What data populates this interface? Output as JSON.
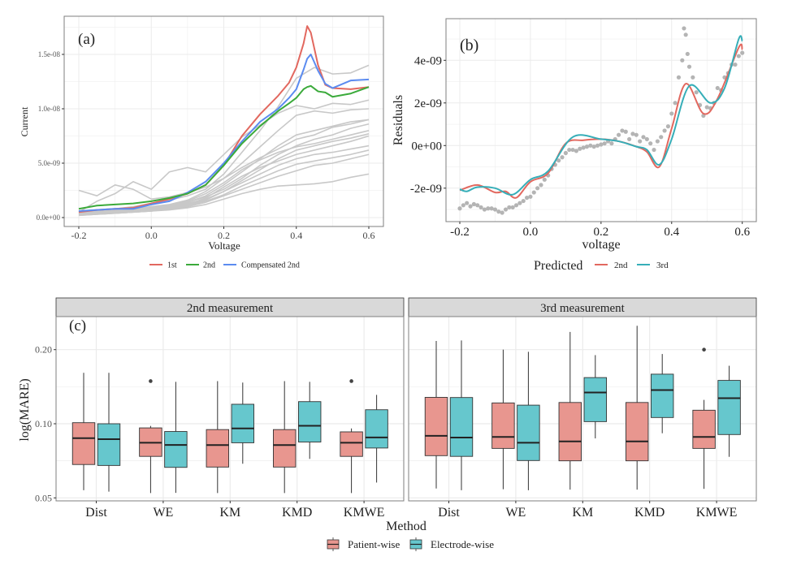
{
  "colors": {
    "first": "#E2685F",
    "second": "#3BAA3B",
    "compensated": "#5B8BF0",
    "gray_curves": "#C8C8C8",
    "pred_2nd": "#E2685F",
    "pred_3rd": "#36AEB8",
    "residual_points": "#B4B4B4",
    "patient_fill": "#E8968F",
    "electrode_fill": "#66C7CD",
    "strip_bg": "#D9D9D9",
    "grid": "#EBEBEB"
  },
  "chart_data": [
    {
      "type": "line",
      "panel_label": "(a)",
      "xlabel": "Voltage",
      "ylabel": "Current",
      "xlim": [
        -0.24,
        0.64
      ],
      "ylim": [
        -8.2e-10,
        1.85e-08
      ],
      "xticks": [
        -0.2,
        0.0,
        0.2,
        0.4,
        0.6
      ],
      "xtick_labels": [
        "-0.2",
        "0.0",
        "0.2",
        "0.4",
        "0.6"
      ],
      "yticks": [
        0,
        5e-09,
        1e-08,
        1.5e-08
      ],
      "ytick_labels": [
        "0.0e+00",
        "5.0e-09",
        "1.0e-08",
        "1.5e-08"
      ],
      "grid": true,
      "legend_position": "bottom",
      "legend": [
        "1st",
        "2nd",
        "Compensated 2nd"
      ],
      "gray_x": [
        -0.2,
        -0.15,
        -0.1,
        -0.05,
        0,
        0.05,
        0.1,
        0.15,
        0.2,
        0.25,
        0.3,
        0.35,
        0.4,
        0.45,
        0.5,
        0.55,
        0.6
      ],
      "gray_series": [
        [
          3e-10,
          4e-10,
          5e-10,
          6e-10,
          7e-10,
          9e-10,
          1.2e-09,
          1.8e-09,
          2.8e-09,
          3.8e-09,
          4.6e-09,
          5.2e-09,
          5.8e-09,
          6.2e-09,
          6.6e-09,
          7e-09,
          7.5e-09
        ],
        [
          4e-10,
          5e-10,
          6e-10,
          7e-10,
          9e-10,
          1.1e-09,
          1.5e-09,
          2.2e-09,
          3.2e-09,
          4.4e-09,
          5.3e-09,
          6e-09,
          6.5e-09,
          6.8e-09,
          7.2e-09,
          7.6e-09,
          8e-09
        ],
        [
          3e-10,
          4e-10,
          4e-10,
          5e-10,
          6e-10,
          8e-10,
          1e-09,
          1.4e-09,
          2e-09,
          2.6e-09,
          3.2e-09,
          3.8e-09,
          4.3e-09,
          4.8e-09,
          5e-09,
          5.4e-09,
          5.8e-09
        ],
        [
          2e-10,
          3e-10,
          4e-10,
          5e-10,
          6e-10,
          7e-10,
          9e-10,
          1.2e-09,
          1.7e-09,
          2.2e-09,
          2.6e-09,
          2.9e-09,
          3e-09,
          3.1e-09,
          3.3e-09,
          3.7e-09,
          4e-09
        ],
        [
          2.5e-09,
          2e-09,
          3e-09,
          2.6e-09,
          1.7e-09,
          1.9e-09,
          2.3e-09,
          2.8e-09,
          3.6e-09,
          4.6e-09,
          5.5e-09,
          6.3e-09,
          7.2e-09,
          7.6e-09,
          8.3e-09,
          8.6e-09,
          9e-09
        ],
        [
          5e-10,
          1.5e-09,
          2.2e-09,
          3.3e-09,
          2.6e-09,
          4.2e-09,
          4.6e-09,
          4.2e-09,
          5.8e-09,
          7.4e-09,
          8.5e-09,
          9.6e-09,
          1.03e-08,
          1e-08,
          1.05e-08,
          1.04e-08,
          1.08e-08
        ],
        [
          6e-10,
          7e-10,
          8e-10,
          1e-09,
          1.3e-09,
          1.6e-09,
          2e-09,
          2.6e-09,
          4e-09,
          6e-09,
          8e-09,
          1.02e-08,
          1.28e-08,
          1.38e-08,
          1.32e-08,
          1.33e-08,
          1.4e-08
        ],
        [
          4e-10,
          5e-10,
          6e-10,
          7e-10,
          8e-10,
          1e-09,
          1.3e-09,
          1.7e-09,
          2.4e-09,
          3.2e-09,
          4e-09,
          4.8e-09,
          5.4e-09,
          5.8e-09,
          6e-09,
          6.3e-09,
          6.6e-09
        ],
        [
          3e-10,
          4e-10,
          5e-10,
          6e-10,
          8e-10,
          1e-09,
          1.4e-09,
          2e-09,
          3e-09,
          4.2e-09,
          5.4e-09,
          6.6e-09,
          7.6e-09,
          8e-09,
          8.4e-09,
          8.8e-09,
          9e-09
        ],
        [
          5e-10,
          6e-10,
          7e-10,
          8e-10,
          1e-09,
          1.2e-09,
          1.6e-09,
          2.4e-09,
          3.6e-09,
          5e-09,
          6.5e-09,
          8e-09,
          9.4e-09,
          9.8e-09,
          9.6e-09,
          9.9e-09,
          1e-08
        ],
        [
          2e-10,
          3e-10,
          4e-10,
          5e-10,
          6e-10,
          8e-10,
          1.1e-09,
          1.5e-09,
          2.1e-09,
          2.9e-09,
          3.6e-09,
          4.3e-09,
          4.9e-09,
          5.2e-09,
          5.5e-09,
          5.8e-09,
          6.2e-09
        ],
        [
          4e-10,
          5e-10,
          5e-10,
          6e-10,
          7e-10,
          9e-10,
          1.2e-09,
          1.6e-09,
          2.4e-09,
          3.4e-09,
          4.4e-09,
          5.4e-09,
          6.2e-09,
          6.6e-09,
          7e-09,
          7.3e-09,
          7.7e-09
        ],
        [
          3e-10,
          4e-10,
          6e-10,
          7e-10,
          9e-10,
          1.1e-09,
          1.4e-09,
          1.9e-09,
          2.6e-09,
          3.6e-09,
          4.8e-09,
          5.8e-09,
          6.6e-09,
          7.2e-09,
          7.6e-09,
          8.2e-09,
          8.6e-09
        ]
      ],
      "series_x": [
        -0.2,
        -0.15,
        -0.1,
        -0.05,
        0,
        0.05,
        0.1,
        0.15,
        0.2,
        0.25,
        0.3,
        0.35,
        0.38,
        0.4,
        0.42,
        0.43,
        0.44,
        0.46,
        0.48,
        0.5,
        0.55,
        0.6
      ],
      "series": [
        {
          "name": "1st",
          "values": [
            5e-10,
            7e-10,
            8e-10,
            9e-10,
            1.3e-09,
            1.7e-09,
            2.2e-09,
            3e-09,
            4.8e-09,
            7.5e-09,
            9.5e-09,
            1.12e-08,
            1.24e-08,
            1.38e-08,
            1.6e-08,
            1.76e-08,
            1.7e-08,
            1.4e-08,
            1.22e-08,
            1.19e-08,
            1.18e-08,
            1.2e-08
          ]
        },
        {
          "name": "2nd",
          "values": [
            8e-10,
            1.1e-09,
            1.2e-09,
            1.3e-09,
            1.5e-09,
            1.8e-09,
            2.2e-09,
            3e-09,
            4.8e-09,
            6.8e-09,
            8.4e-09,
            9.8e-09,
            1.05e-08,
            1.1e-08,
            1.18e-08,
            1.2e-08,
            1.21e-08,
            1.16e-08,
            1.15e-08,
            1.11e-08,
            1.14e-08,
            1.2e-08
          ]
        },
        {
          "name": "Compensated 2nd",
          "values": [
            6e-10,
            7e-10,
            8e-10,
            8e-10,
            1.2e-09,
            1.5e-09,
            2.3e-09,
            3.3e-09,
            5e-09,
            7e-09,
            8.8e-09,
            1e-08,
            1.1e-08,
            1.18e-08,
            1.36e-08,
            1.46e-08,
            1.5e-08,
            1.35e-08,
            1.23e-08,
            1.19e-08,
            1.26e-08,
            1.27e-08
          ]
        }
      ]
    },
    {
      "type": "line",
      "panel_label": "(b)",
      "xlabel": "voltage",
      "ylabel": "Residuals",
      "xlim": [
        -0.239,
        0.64
      ],
      "ylim": [
        -3.57e-09,
        5.95e-09
      ],
      "xticks": [
        -0.2,
        0.0,
        0.2,
        0.4,
        0.6
      ],
      "xtick_labels": [
        "-0.2",
        "0.0",
        "0.2",
        "0.4",
        "0.6"
      ],
      "yticks": [
        -2e-09,
        0,
        2e-09,
        4e-09
      ],
      "ytick_labels": [
        "-2e-09",
        "0e+00",
        "2e-09",
        "4e-09"
      ],
      "grid": true,
      "legend_position": "bottom",
      "legend_title": "Predicted",
      "points": {
        "x": [
          -0.2,
          -0.19,
          -0.18,
          -0.17,
          -0.16,
          -0.15,
          -0.14,
          -0.13,
          -0.12,
          -0.11,
          -0.1,
          -0.09,
          -0.08,
          -0.07,
          -0.06,
          -0.05,
          -0.04,
          -0.03,
          -0.02,
          -0.01,
          0.0,
          0.01,
          0.02,
          0.03,
          0.04,
          0.05,
          0.06,
          0.07,
          0.08,
          0.09,
          0.1,
          0.11,
          0.12,
          0.13,
          0.14,
          0.15,
          0.16,
          0.17,
          0.18,
          0.19,
          0.2,
          0.21,
          0.22,
          0.23,
          0.24,
          0.25,
          0.26,
          0.27,
          0.28,
          0.29,
          0.3,
          0.31,
          0.32,
          0.33,
          0.34,
          0.35,
          0.36,
          0.37,
          0.38,
          0.39,
          0.4,
          0.41,
          0.42,
          0.43,
          0.435,
          0.44,
          0.445,
          0.45,
          0.46,
          0.47,
          0.48,
          0.49,
          0.5,
          0.51,
          0.52,
          0.53,
          0.54,
          0.55,
          0.56,
          0.57,
          0.58,
          0.59,
          0.6
        ],
        "y": [
          -2.95e-09,
          -2.8e-09,
          -2.7e-09,
          -2.85e-09,
          -2.75e-09,
          -2.8e-09,
          -2.9e-09,
          -3e-09,
          -2.95e-09,
          -2.95e-09,
          -3e-09,
          -3.1e-09,
          -3.15e-09,
          -3e-09,
          -2.9e-09,
          -2.9e-09,
          -2.8e-09,
          -2.7e-09,
          -2.6e-09,
          -2.45e-09,
          -2.4e-09,
          -2.2e-09,
          -2e-09,
          -1.85e-09,
          -1.6e-09,
          -1.4e-09,
          -1.1e-09,
          -9e-10,
          -7e-10,
          -5.5e-10,
          -3.5e-10,
          -2e-10,
          -2e-10,
          -2.5e-10,
          -1.5e-10,
          -1e-10,
          -5e-11,
          0,
          -5e-11,
          0,
          5e-11,
          1e-10,
          2e-10,
          1e-10,
          3e-10,
          5e-10,
          7e-10,
          6.5e-10,
          3e-10,
          5.5e-10,
          5e-10,
          2e-10,
          4e-10,
          3e-10,
          1e-10,
          -2e-10,
          2e-10,
          4e-10,
          7e-10,
          9e-10,
          1.5e-09,
          2e-09,
          3.2e-09,
          4e-09,
          5.5e-09,
          5.2e-09,
          4.3e-09,
          3.7e-09,
          3.2e-09,
          2.5e-09,
          1.9e-09,
          1.4e-09,
          1.8e-09,
          1.75e-09,
          2e-09,
          2.7e-09,
          2.6e-09,
          3.2e-09,
          3.4e-09,
          3.8e-09,
          3.8e-09,
          4.2e-09,
          4.35e-09
        ]
      },
      "series": [
        {
          "name": "2nd",
          "x": [
            -0.2,
            -0.15,
            -0.1,
            -0.07,
            -0.04,
            0.0,
            0.05,
            0.1,
            0.15,
            0.2,
            0.25,
            0.3,
            0.33,
            0.365,
            0.4,
            0.44,
            0.49,
            0.53,
            0.59,
            0.6
          ],
          "values": [
            -2.1e-09,
            -1.85e-09,
            -2.2e-09,
            -2.15e-09,
            -2.45e-09,
            -1.7e-09,
            -1.3e-09,
            1e-10,
            2.5e-10,
            3e-10,
            2e-10,
            -5e-11,
            -3e-10,
            -1e-09,
            8e-10,
            2.9e-09,
            1.5e-09,
            2.2e-09,
            4.6e-09,
            4.5e-09
          ]
        },
        {
          "name": "3rd",
          "x": [
            -0.2,
            -0.18,
            -0.15,
            -0.1,
            -0.05,
            0.0,
            0.05,
            0.12,
            0.2,
            0.25,
            0.3,
            0.33,
            0.365,
            0.4,
            0.45,
            0.51,
            0.55,
            0.59,
            0.6
          ],
          "values": [
            -2.05e-09,
            -2.15e-09,
            -1.95e-09,
            -2e-09,
            -2.3e-09,
            -1.6e-09,
            -1.2e-09,
            4e-10,
            3e-10,
            2e-10,
            -5e-11,
            -2e-10,
            -9e-10,
            3e-10,
            2.8e-09,
            2e-09,
            2.7e-09,
            5e-09,
            4.9e-09
          ]
        }
      ]
    },
    {
      "type": "box",
      "panel_label": "(c)",
      "xlabel": "Method",
      "ylabel": "log(MARE)",
      "y_scale": "log",
      "ylim": [
        0.0486,
        0.272
      ],
      "yticks": [
        0.05,
        0.1,
        0.2
      ],
      "ytick_labels": [
        "0.05",
        "0.10",
        "0.20"
      ],
      "categories": [
        "Dist",
        "WE",
        "KM",
        "KMD",
        "KMWE"
      ],
      "grid": true,
      "legend_position": "bottom",
      "legend": [
        "Patient-wise",
        "Electrode-wise"
      ],
      "facets": [
        {
          "title": "2nd measurement",
          "groups": {
            "Patient-wise": [
              {
                "low": 0.0537,
                "q1": 0.0683,
                "median": 0.0874,
                "q3": 0.101,
                "high": 0.161,
                "outliers": []
              },
              {
                "low": 0.0523,
                "q1": 0.0737,
                "median": 0.0837,
                "q3": 0.0962,
                "high": 0.098,
                "outliers": [
                  0.149
                ]
              },
              {
                "low": 0.0523,
                "q1": 0.0667,
                "median": 0.0819,
                "q3": 0.0947,
                "high": 0.149,
                "outliers": []
              },
              {
                "low": 0.0523,
                "q1": 0.0667,
                "median": 0.0819,
                "q3": 0.0947,
                "high": 0.149,
                "outliers": []
              },
              {
                "low": 0.0523,
                "q1": 0.0737,
                "median": 0.0837,
                "q3": 0.0927,
                "high": 0.0957,
                "outliers": [
                  0.149
                ]
              }
            ],
            "Electrode-wise": [
              {
                "low": 0.053,
                "q1": 0.0677,
                "median": 0.0866,
                "q3": 0.1,
                "high": 0.161,
                "outliers": []
              },
              {
                "low": 0.0524,
                "q1": 0.0665,
                "median": 0.082,
                "q3": 0.093,
                "high": 0.148,
                "outliers": []
              },
              {
                "low": 0.0688,
                "q1": 0.0837,
                "median": 0.0957,
                "q3": 0.12,
                "high": 0.147,
                "outliers": []
              },
              {
                "low": 0.072,
                "q1": 0.0843,
                "median": 0.0981,
                "q3": 0.123,
                "high": 0.148,
                "outliers": []
              },
              {
                "low": 0.0577,
                "q1": 0.0797,
                "median": 0.088,
                "q3": 0.114,
                "high": 0.131,
                "outliers": []
              }
            ]
          }
        },
        {
          "title": "3rd measurement",
          "groups": {
            "Patient-wise": [
              {
                "low": 0.0546,
                "q1": 0.0742,
                "median": 0.0893,
                "q3": 0.128,
                "high": 0.217,
                "outliers": []
              },
              {
                "low": 0.0542,
                "q1": 0.0794,
                "median": 0.0884,
                "q3": 0.1215,
                "high": 0.2,
                "outliers": []
              },
              {
                "low": 0.054,
                "q1": 0.0707,
                "median": 0.0848,
                "q3": 0.122,
                "high": 0.236,
                "outliers": []
              },
              {
                "low": 0.054,
                "q1": 0.0707,
                "median": 0.0848,
                "q3": 0.122,
                "high": 0.25,
                "outliers": []
              },
              {
                "low": 0.0544,
                "q1": 0.0794,
                "median": 0.0884,
                "q3": 0.1135,
                "high": 0.125,
                "outliers": [
                  0.2
                ]
              }
            ],
            "Electrode-wise": [
              {
                "low": 0.0537,
                "q1": 0.0737,
                "median": 0.0879,
                "q3": 0.1278,
                "high": 0.218,
                "outliers": []
              },
              {
                "low": 0.0537,
                "q1": 0.0709,
                "median": 0.0837,
                "q3": 0.119,
                "high": 0.196,
                "outliers": []
              },
              {
                "low": 0.0872,
                "q1": 0.102,
                "median": 0.134,
                "q3": 0.154,
                "high": 0.19,
                "outliers": []
              },
              {
                "low": 0.0915,
                "q1": 0.106,
                "median": 0.137,
                "q3": 0.159,
                "high": 0.192,
                "outliers": []
              },
              {
                "low": 0.0734,
                "q1": 0.0904,
                "median": 0.127,
                "q3": 0.15,
                "high": 0.172,
                "outliers": []
              }
            ]
          }
        }
      ]
    }
  ]
}
